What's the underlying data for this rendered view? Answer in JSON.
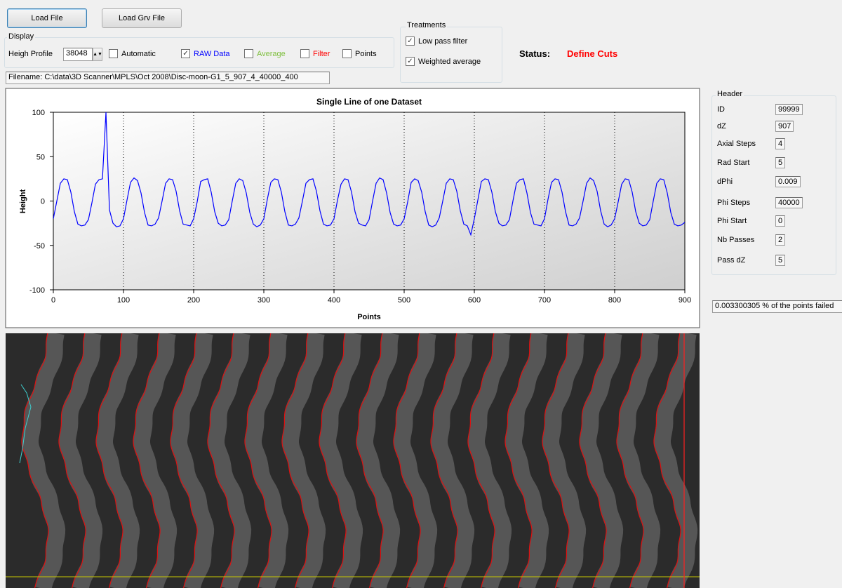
{
  "toolbar": {
    "load_file": "Load File",
    "load_grv_file": "Load Grv File"
  },
  "display": {
    "title": "Display",
    "height_profile_label": "Heigh Profile",
    "height_profile_value": "38048",
    "options": [
      {
        "label": "Automatic",
        "checked": false,
        "color": "#000000"
      },
      {
        "label": "RAW Data",
        "checked": true,
        "color": "#0000ff"
      },
      {
        "label": "Average",
        "checked": false,
        "color": "#7fbf3f"
      },
      {
        "label": "Filter",
        "checked": false,
        "color": "#ff0000"
      },
      {
        "label": "Points",
        "checked": false,
        "color": "#000000"
      }
    ]
  },
  "treatments": {
    "title": "Treatments",
    "options": [
      {
        "label": "Low pass filter",
        "checked": true
      },
      {
        "label": "Weighted average",
        "checked": true
      }
    ]
  },
  "status": {
    "label": "Status:",
    "value": "Define Cuts"
  },
  "filename": "Filename: C:\\data\\3D Scanner\\MPLS\\Oct 2008\\Disc-moon-G1_5_907_4_40000_400",
  "chart_data": {
    "type": "line",
    "title": "Single Line of one Dataset",
    "x_label": "Points",
    "y_label": "Height",
    "xlim": [
      0,
      900
    ],
    "ylim": [
      -100,
      100
    ],
    "xticks": [
      0,
      100,
      200,
      300,
      400,
      500,
      600,
      700,
      800,
      900
    ],
    "yticks": [
      -100,
      -50,
      0,
      50,
      100
    ],
    "grid": true,
    "x": [
      0,
      5,
      10,
      15,
      20,
      25,
      30,
      35,
      40,
      45,
      50,
      55,
      60,
      65,
      70,
      75,
      80,
      85,
      90,
      95,
      100,
      105,
      110,
      115,
      120,
      125,
      130,
      135,
      140,
      145,
      150,
      155,
      160,
      165,
      170,
      175,
      180,
      185,
      190,
      195,
      200,
      205,
      210,
      215,
      220,
      225,
      230,
      235,
      240,
      245,
      250,
      255,
      260,
      265,
      270,
      275,
      280,
      285,
      290,
      295,
      300,
      305,
      310,
      315,
      320,
      325,
      330,
      335,
      340,
      345,
      350,
      355,
      360,
      365,
      370,
      375,
      380,
      385,
      390,
      395,
      400,
      405,
      410,
      415,
      420,
      425,
      430,
      435,
      440,
      445,
      450,
      455,
      460,
      465,
      470,
      475,
      480,
      485,
      490,
      495,
      500,
      505,
      510,
      515,
      520,
      525,
      530,
      535,
      540,
      545,
      550,
      555,
      560,
      565,
      570,
      575,
      580,
      585,
      590,
      595,
      600,
      605,
      610,
      615,
      620,
      625,
      630,
      635,
      640,
      645,
      650,
      655,
      660,
      665,
      670,
      675,
      680,
      685,
      690,
      695,
      700,
      705,
      710,
      715,
      720,
      725,
      730,
      735,
      740,
      745,
      750,
      755,
      760,
      765,
      770,
      775,
      780,
      785,
      790,
      795,
      800,
      805,
      810,
      815,
      820,
      825,
      830,
      835,
      840,
      845,
      850,
      855,
      860,
      865,
      870,
      875,
      880,
      885,
      890,
      895,
      900
    ],
    "series": [
      {
        "name": "RAW Data",
        "color": "#0000ff",
        "values": [
          -20,
          0,
          20,
          25,
          24,
          10,
          -12,
          -26,
          -28,
          -27,
          -21,
          -2,
          19,
          24,
          25,
          100,
          -10,
          -25,
          -29,
          -28,
          -20,
          1,
          21,
          26,
          23,
          9,
          -13,
          -27,
          -28,
          -26,
          -19,
          0,
          20,
          25,
          24,
          11,
          -11,
          -26,
          -27,
          -28,
          -20,
          -1,
          22,
          24,
          25,
          10,
          -12,
          -25,
          -28,
          -27,
          -21,
          0,
          20,
          25,
          23,
          9,
          -13,
          -26,
          -29,
          -27,
          -20,
          2,
          21,
          25,
          24,
          10,
          -12,
          -27,
          -28,
          -26,
          -19,
          0,
          20,
          24,
          25,
          11,
          -11,
          -26,
          -28,
          -27,
          -20,
          1,
          19,
          25,
          24,
          10,
          -12,
          -25,
          -27,
          -28,
          -21,
          0,
          20,
          26,
          24,
          9,
          -13,
          -26,
          -28,
          -27,
          -20,
          -1,
          21,
          25,
          23,
          10,
          -12,
          -27,
          -29,
          -27,
          -19,
          0,
          20,
          25,
          24,
          11,
          -11,
          -26,
          -28,
          -38,
          -20,
          1,
          22,
          25,
          24,
          10,
          -12,
          -25,
          -28,
          -27,
          -21,
          0,
          20,
          24,
          25,
          9,
          -13,
          -26,
          -27,
          -28,
          -20,
          2,
          21,
          25,
          24,
          10,
          -12,
          -27,
          -28,
          -26,
          -19,
          0,
          20,
          26,
          23,
          11,
          -11,
          -26,
          -29,
          -27,
          -20,
          -1,
          19,
          25,
          24,
          10,
          -12,
          -25,
          -28,
          -27,
          -21,
          0,
          20,
          25,
          24,
          9,
          -13,
          -26,
          -28,
          -27,
          -24
        ]
      }
    ]
  },
  "header": {
    "title": "Header",
    "fields": [
      {
        "label": "ID",
        "value": "99999"
      },
      {
        "label": "dZ",
        "value": "907"
      },
      {
        "label": "Axial Steps",
        "value": "4"
      },
      {
        "label": "Rad Start",
        "value": "5"
      },
      {
        "label": "dPhi",
        "value": "0.009"
      },
      {
        "label": "Phi Steps",
        "value": "40000"
      },
      {
        "label": "Phi Start",
        "value": "0"
      },
      {
        "label": "Nb Passes",
        "value": "2"
      },
      {
        "label": "Pass dZ",
        "value": "5"
      }
    ]
  },
  "failed_points": "0.003300305 % of the points failed"
}
